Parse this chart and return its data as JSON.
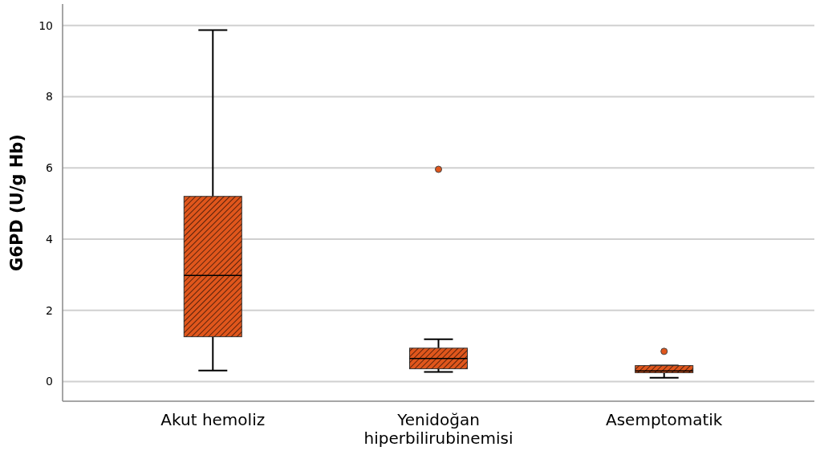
{
  "chart_data": {
    "type": "box",
    "ylabel": "G6PD (U/g Hb)",
    "categories": [
      "Akut hemoliz",
      "Yenidoğan hiperbilirubinemisi",
      "Asemptomatik"
    ],
    "boxes": [
      {
        "low": 0.31,
        "q1": 1.26,
        "median": 2.98,
        "q3": 5.2,
        "high": 9.87
      },
      {
        "low": 0.27,
        "q1": 0.36,
        "median": 0.65,
        "q3": 0.94,
        "high": 1.19,
        "outliers": [
          5.96
        ]
      },
      {
        "low": 0.11,
        "q1": 0.25,
        "median": 0.3,
        "q3": 0.45,
        "high": 0.45,
        "outliers": [
          0.85
        ]
      }
    ],
    "color": "#e0561c",
    "ylim": [
      -0.55,
      10.6
    ],
    "yticks": [
      0,
      2,
      4,
      6,
      8,
      10
    ],
    "grid": "y"
  }
}
